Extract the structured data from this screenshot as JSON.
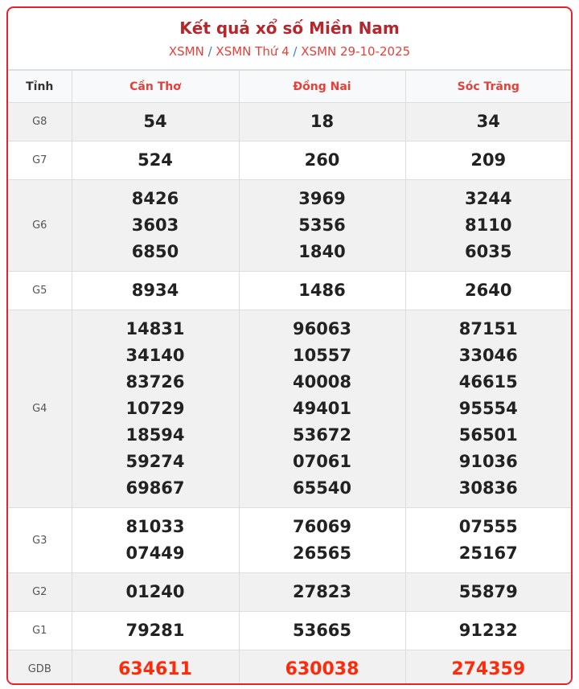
{
  "header": {
    "title": "Kết quả xổ số Miền Nam",
    "breadcrumb": [
      "XSMN",
      "XSMN Thứ 4",
      "XSMN 29-10-2025"
    ],
    "separator": "/"
  },
  "table": {
    "first_col": "Tỉnh",
    "provinces": [
      "Cần Thơ",
      "Đồng Nai",
      "Sóc Trăng"
    ],
    "rows": [
      {
        "prize": "G8",
        "values": [
          [
            "54"
          ],
          [
            "18"
          ],
          [
            "34"
          ]
        ]
      },
      {
        "prize": "G7",
        "values": [
          [
            "524"
          ],
          [
            "260"
          ],
          [
            "209"
          ]
        ]
      },
      {
        "prize": "G6",
        "values": [
          [
            "8426",
            "3603",
            "6850"
          ],
          [
            "3969",
            "5356",
            "1840"
          ],
          [
            "3244",
            "8110",
            "6035"
          ]
        ]
      },
      {
        "prize": "G5",
        "values": [
          [
            "8934"
          ],
          [
            "1486"
          ],
          [
            "2640"
          ]
        ]
      },
      {
        "prize": "G4",
        "values": [
          [
            "14831",
            "34140",
            "83726",
            "10729",
            "18594",
            "59274",
            "69867"
          ],
          [
            "96063",
            "10557",
            "40008",
            "49401",
            "53672",
            "07061",
            "65540"
          ],
          [
            "87151",
            "33046",
            "46615",
            "95554",
            "56501",
            "91036",
            "30836"
          ]
        ]
      },
      {
        "prize": "G3",
        "values": [
          [
            "81033",
            "07449"
          ],
          [
            "76069",
            "26565"
          ],
          [
            "07555",
            "25167"
          ]
        ]
      },
      {
        "prize": "G2",
        "values": [
          [
            "01240"
          ],
          [
            "27823"
          ],
          [
            "55879"
          ]
        ]
      },
      {
        "prize": "G1",
        "values": [
          [
            "79281"
          ],
          [
            "53665"
          ],
          [
            "91232"
          ]
        ]
      },
      {
        "prize": "GDB",
        "values": [
          [
            "634611"
          ],
          [
            "630038"
          ],
          [
            "274359"
          ]
        ]
      }
    ]
  },
  "colors": {
    "accent": "#e8222a",
    "special": "#ff2a0a"
  }
}
